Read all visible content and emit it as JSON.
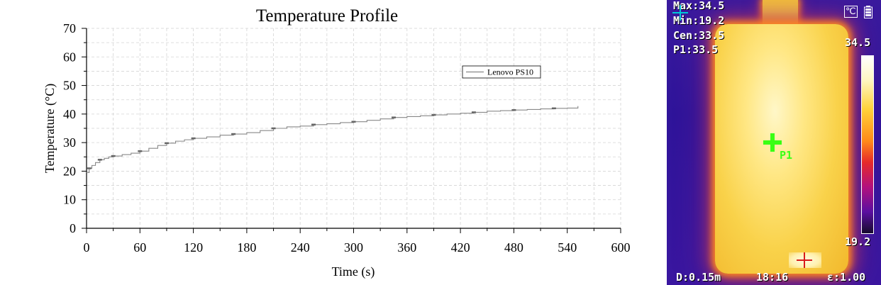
{
  "chart_data": {
    "type": "line",
    "title": "Temperature Profile",
    "xlabel": "Time (s)",
    "ylabel": "Temperature (°C)",
    "xlim": [
      0,
      600
    ],
    "ylim": [
      0,
      70
    ],
    "x_ticks": [
      0,
      60,
      120,
      180,
      240,
      300,
      360,
      420,
      480,
      540,
      600
    ],
    "y_ticks": [
      0,
      10,
      20,
      30,
      40,
      50,
      60,
      70
    ],
    "grid": true,
    "legend_position": "top-right",
    "series": [
      {
        "name": "Lenovo PS10",
        "color": "#888888",
        "x": [
          0,
          3,
          6,
          10,
          15,
          20,
          25,
          30,
          40,
          50,
          60,
          70,
          80,
          90,
          100,
          110,
          120,
          135,
          150,
          165,
          180,
          195,
          210,
          225,
          240,
          255,
          270,
          285,
          300,
          315,
          330,
          345,
          360,
          375,
          390,
          405,
          420,
          435,
          450,
          465,
          480,
          495,
          510,
          525,
          540,
          552
        ],
        "y": [
          19.5,
          21.0,
          22.0,
          23.0,
          24.0,
          24.5,
          25.0,
          25.3,
          25.8,
          26.3,
          27.0,
          28.0,
          29.0,
          29.8,
          30.5,
          31.0,
          31.5,
          32.0,
          32.6,
          33.0,
          33.5,
          34.2,
          35.0,
          35.5,
          35.8,
          36.3,
          36.6,
          37.0,
          37.3,
          37.8,
          38.3,
          38.8,
          39.1,
          39.4,
          39.7,
          40.0,
          40.3,
          40.6,
          41.0,
          41.2,
          41.4,
          41.6,
          41.8,
          42.0,
          42.1,
          42.8
        ]
      }
    ]
  },
  "thermal": {
    "max_label": "Max:34.5",
    "min_label": "Min:19.2",
    "cen_label": "Cen:33.5",
    "p1_label": "P1:33.5",
    "scale_max": "34.5",
    "scale_min": "19.2",
    "p1_marker": "P1",
    "distance": "D:0.15m",
    "time": "18:16",
    "emissivity": "ε:1.00",
    "unit_icon": "℃",
    "battery_icon": "battery-icon",
    "colors": {
      "marker_green": "#39ff14",
      "marker_red": "#d81b1b",
      "marker_cyan": "#00c8d8"
    }
  }
}
